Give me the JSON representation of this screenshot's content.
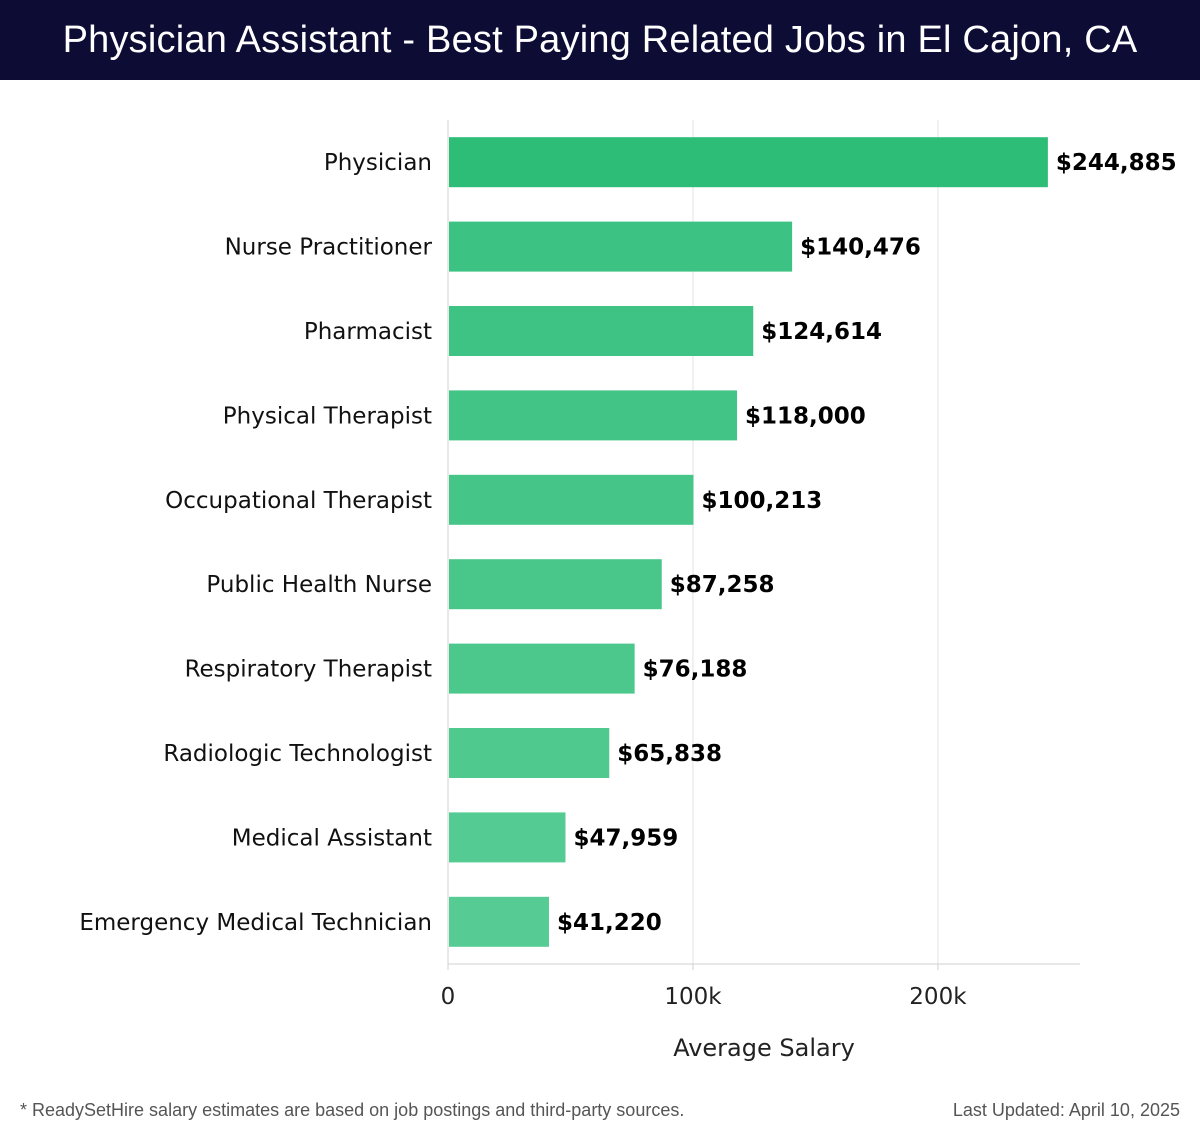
{
  "header": {
    "title": "Physician Assistant - Best Paying Related Jobs in El Cajon, CA"
  },
  "chart_data": {
    "type": "bar",
    "orientation": "horizontal",
    "categories": [
      "Physician",
      "Nurse Practitioner",
      "Pharmacist",
      "Physical Therapist",
      "Occupational Therapist",
      "Public Health Nurse",
      "Respiratory Therapist",
      "Radiologic Technologist",
      "Medical Assistant",
      "Emergency Medical Technician"
    ],
    "values": [
      244885,
      140476,
      124614,
      118000,
      100213,
      87258,
      76188,
      65838,
      47959,
      41220
    ],
    "data_labels": [
      "$244,885",
      "$140,476",
      "$124,614",
      "$118,000",
      "$100,213",
      "$87,258",
      "$76,188",
      "$65,838",
      "$47,959",
      "$41,220"
    ],
    "xlabel": "Average Salary",
    "ylabel": "",
    "xlim": [
      0,
      258000
    ],
    "xticks": [
      0,
      100000,
      200000
    ],
    "xtick_labels": [
      "0",
      "100k",
      "200k"
    ],
    "grid": true,
    "colors": {
      "top_bar": "#2dbd77",
      "bars": [
        "#2dbd77",
        "#3cc283",
        "#3fc384",
        "#42c486",
        "#45c588",
        "#49c78b",
        "#4cc88d",
        "#50c98f",
        "#53cb92",
        "#56cc94"
      ]
    }
  },
  "footer": {
    "note": "* ReadySetHire salary estimates are based on job postings and third-party sources.",
    "updated": "Last Updated: April 10, 2025"
  }
}
